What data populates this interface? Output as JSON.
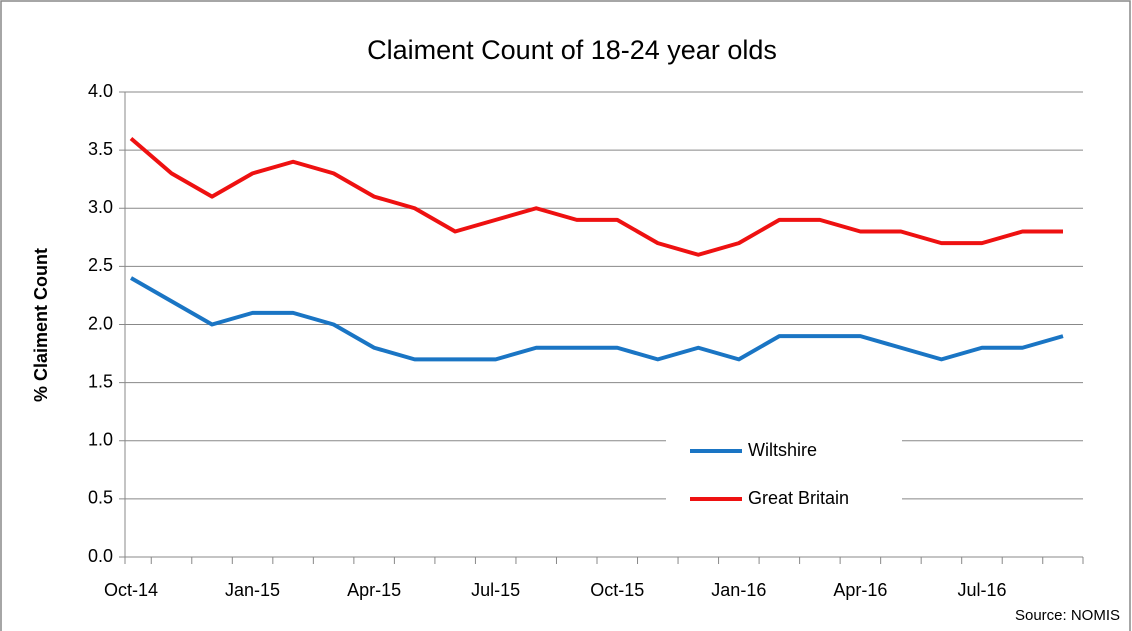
{
  "chart_data": {
    "type": "line",
    "title": "Claiment Count of 18-24 year olds",
    "y_label": "% Claiment Count",
    "source": "Source: NOMIS",
    "categories": [
      "Oct-14",
      null,
      null,
      "Jan-15",
      null,
      null,
      "Apr-15",
      null,
      null,
      "Jul-15",
      null,
      null,
      "Oct-15",
      null,
      null,
      "Jan-16",
      null,
      null,
      "Apr-16",
      null,
      null,
      "Jul-16",
      null,
      null
    ],
    "series": [
      {
        "name": "Wiltshire",
        "color": "#1a75c4",
        "values": [
          2.4,
          2.2,
          2.0,
          2.1,
          2.1,
          2.0,
          1.8,
          1.7,
          1.7,
          1.7,
          1.8,
          1.8,
          1.8,
          1.7,
          1.8,
          1.7,
          1.9,
          1.9,
          1.9,
          1.8,
          1.7,
          1.8,
          1.8,
          1.9
        ]
      },
      {
        "name": "Great Britain",
        "color": "#ee1111",
        "values": [
          3.6,
          3.3,
          3.1,
          3.3,
          3.4,
          3.3,
          3.1,
          3.0,
          2.8,
          2.9,
          3.0,
          2.9,
          2.9,
          2.7,
          2.6,
          2.7,
          2.9,
          2.9,
          2.8,
          2.8,
          2.7,
          2.7,
          2.8,
          2.8
        ]
      }
    ],
    "ylim": [
      0,
      4
    ],
    "yticks": [
      {
        "value": 0,
        "label": "0.0"
      },
      0.5,
      {
        "value": 1,
        "label": "1.0"
      },
      1.5,
      {
        "value": 2,
        "label": "2.0"
      },
      2.5,
      {
        "value": 3,
        "label": "3.0"
      },
      3.5,
      {
        "value": 4,
        "label": "4.0"
      }
    ],
    "grid": true
  }
}
